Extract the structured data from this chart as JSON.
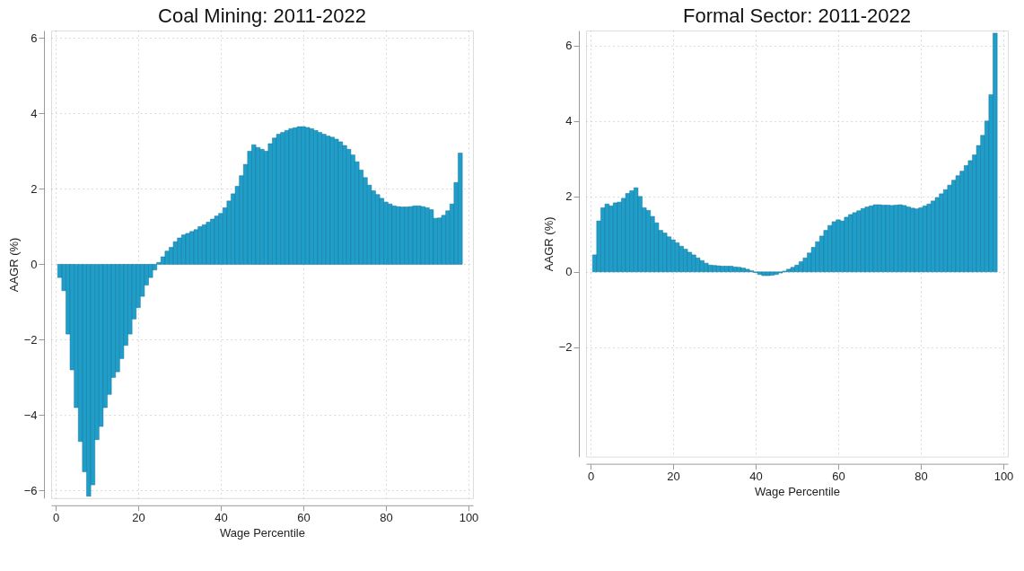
{
  "chart_data": [
    {
      "type": "bar",
      "title": "Coal Mining: 2011-2022",
      "xlabel": "Wage Percentile",
      "ylabel": "AAGR (%)",
      "color": "#1f9ec9",
      "grid": true,
      "x": [
        1,
        2,
        3,
        4,
        5,
        6,
        7,
        8,
        9,
        10,
        11,
        12,
        13,
        14,
        15,
        16,
        17,
        18,
        19,
        20,
        21,
        22,
        23,
        24,
        25,
        26,
        27,
        28,
        29,
        30,
        31,
        32,
        33,
        34,
        35,
        36,
        37,
        38,
        39,
        40,
        41,
        42,
        43,
        44,
        45,
        46,
        47,
        48,
        49,
        50,
        51,
        52,
        53,
        54,
        55,
        56,
        57,
        58,
        59,
        60,
        61,
        62,
        63,
        64,
        65,
        66,
        67,
        68,
        69,
        70,
        71,
        72,
        73,
        74,
        75,
        76,
        77,
        78,
        79,
        80,
        81,
        82,
        83,
        84,
        85,
        86,
        87,
        88,
        89,
        90,
        91,
        92,
        93,
        94,
        95,
        96,
        97,
        98
      ],
      "values": [
        -0.35,
        -0.7,
        -1.85,
        -2.8,
        -3.8,
        -4.7,
        -5.5,
        -6.15,
        -5.85,
        -4.65,
        -4.3,
        -3.8,
        -3.45,
        -3.0,
        -2.85,
        -2.5,
        -2.15,
        -1.85,
        -1.45,
        -1.15,
        -0.85,
        -0.55,
        -0.35,
        -0.15,
        0.05,
        0.2,
        0.35,
        0.45,
        0.6,
        0.7,
        0.78,
        0.82,
        0.87,
        0.92,
        1.0,
        1.05,
        1.12,
        1.2,
        1.28,
        1.35,
        1.5,
        1.68,
        1.87,
        2.07,
        2.35,
        2.65,
        3.0,
        3.17,
        3.1,
        3.05,
        3.0,
        3.2,
        3.35,
        3.45,
        3.5,
        3.55,
        3.6,
        3.62,
        3.65,
        3.65,
        3.63,
        3.6,
        3.55,
        3.5,
        3.45,
        3.4,
        3.37,
        3.32,
        3.25,
        3.15,
        3.05,
        2.9,
        2.72,
        2.5,
        2.3,
        2.1,
        1.95,
        1.85,
        1.75,
        1.65,
        1.6,
        1.55,
        1.53,
        1.52,
        1.52,
        1.53,
        1.55,
        1.55,
        1.53,
        1.5,
        1.45,
        1.22,
        1.23,
        1.3,
        1.42,
        1.6,
        2.17,
        2.95
      ],
      "xlim": [
        0,
        100
      ],
      "xticks": [
        0,
        20,
        40,
        60,
        80,
        100
      ],
      "ylim": [
        -6.2,
        6.2
      ],
      "yticks": [
        -6,
        -4,
        -2,
        0,
        2,
        4,
        6
      ]
    },
    {
      "type": "bar",
      "title": "Formal Sector: 2011-2022",
      "xlabel": "Wage Percentile",
      "ylabel": "AAGR (%)",
      "color": "#1f9ec9",
      "grid": true,
      "x": [
        1,
        2,
        3,
        4,
        5,
        6,
        7,
        8,
        9,
        10,
        11,
        12,
        13,
        14,
        15,
        16,
        17,
        18,
        19,
        20,
        21,
        22,
        23,
        24,
        25,
        26,
        27,
        28,
        29,
        30,
        31,
        32,
        33,
        34,
        35,
        36,
        37,
        38,
        39,
        40,
        41,
        42,
        43,
        44,
        45,
        46,
        47,
        48,
        49,
        50,
        51,
        52,
        53,
        54,
        55,
        56,
        57,
        58,
        59,
        60,
        61,
        62,
        63,
        64,
        65,
        66,
        67,
        68,
        69,
        70,
        71,
        72,
        73,
        74,
        75,
        76,
        77,
        78,
        79,
        80,
        81,
        82,
        83,
        84,
        85,
        86,
        87,
        88,
        89,
        90,
        91,
        92,
        93,
        94,
        95,
        96,
        97,
        98
      ],
      "values": [
        0.45,
        1.35,
        1.7,
        1.8,
        1.75,
        1.83,
        1.85,
        1.95,
        2.08,
        2.15,
        2.23,
        2.0,
        1.7,
        1.63,
        1.47,
        1.3,
        1.1,
        1.03,
        0.93,
        0.85,
        0.77,
        0.68,
        0.6,
        0.52,
        0.45,
        0.37,
        0.3,
        0.23,
        0.18,
        0.17,
        0.16,
        0.15,
        0.15,
        0.15,
        0.13,
        0.12,
        0.1,
        0.07,
        0.03,
        -0.02,
        -0.07,
        -0.1,
        -0.1,
        -0.09,
        -0.07,
        -0.03,
        0.02,
        0.07,
        0.12,
        0.18,
        0.27,
        0.37,
        0.5,
        0.65,
        0.8,
        0.95,
        1.1,
        1.23,
        1.33,
        1.38,
        1.35,
        1.45,
        1.52,
        1.57,
        1.62,
        1.68,
        1.72,
        1.75,
        1.78,
        1.78,
        1.77,
        1.77,
        1.76,
        1.77,
        1.78,
        1.76,
        1.72,
        1.69,
        1.67,
        1.7,
        1.75,
        1.8,
        1.88,
        1.97,
        2.07,
        2.18,
        2.3,
        2.43,
        2.55,
        2.67,
        2.82,
        2.95,
        3.1,
        3.35,
        3.62,
        4.0,
        4.7,
        6.33
      ],
      "xlim": [
        0,
        100
      ],
      "xticks": [
        0,
        20,
        40,
        60,
        80,
        100
      ],
      "ylim": [
        -4.9,
        6.4
      ],
      "yticks": [
        -2,
        0,
        2,
        4,
        6
      ]
    }
  ]
}
